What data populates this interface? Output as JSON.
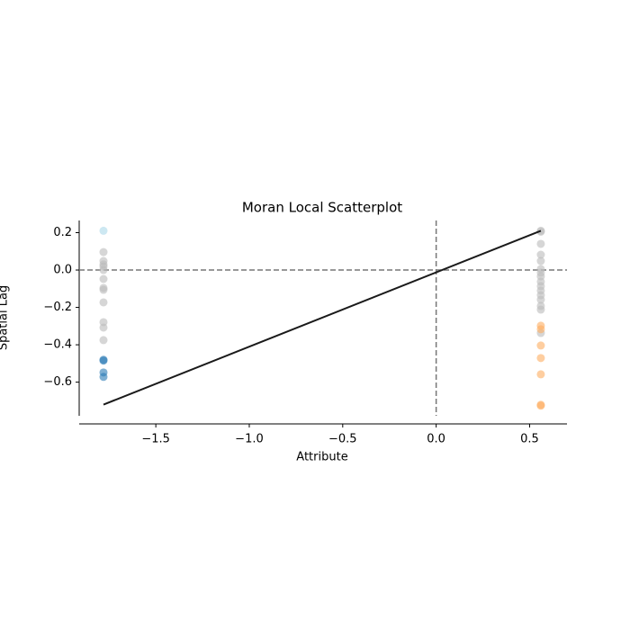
{
  "chart_data": {
    "type": "scatter",
    "title": "Moran Local Scatterplot",
    "x_label": "Attribute",
    "y_label": "Spatial Lag",
    "xlim": [
      -1.91,
      0.7
    ],
    "ylim": [
      -0.78,
      0.265
    ],
    "xticks": [
      {
        "value": -1.5,
        "label": "−1.5"
      },
      {
        "value": -1.0,
        "label": "−1.0"
      },
      {
        "value": -0.5,
        "label": "−0.5"
      },
      {
        "value": 0,
        "label": "0.0"
      },
      0.5
    ],
    "yticks": [
      0.2,
      {
        "value": 0,
        "label": "0.0"
      },
      {
        "value": -0.2,
        "label": "−0.2"
      },
      {
        "value": -0.4,
        "label": "−0.4"
      },
      {
        "value": -0.6,
        "label": "−0.6"
      }
    ],
    "alpha": 0.6,
    "series": [
      {
        "color": "#abd9e9",
        "x": [
          -1.78
        ],
        "values": [
          0.21
        ]
      },
      {
        "color": "#bababa",
        "x": [
          -1.78,
          -1.78,
          -1.78,
          -1.78,
          -1.78,
          -1.78,
          -1.78,
          -1.78,
          -1.78,
          -1.78,
          -1.78,
          -1.78,
          0.56,
          0.56,
          0.56,
          0.56,
          0.56,
          0.56,
          0.56,
          0.56,
          0.56,
          0.56,
          0.56,
          0.56,
          0.56,
          0.56,
          0.56,
          0.56
        ],
        "values": [
          0.096,
          0.048,
          0.019,
          0,
          -0.048,
          -0.096,
          -0.106,
          -0.173,
          -0.279,
          -0.308,
          -0.375,
          0.03,
          0.21,
          0.205,
          0.14,
          0.082,
          0.048,
          0.005,
          -0.014,
          -0.034,
          -0.062,
          -0.086,
          -0.11,
          -0.135,
          -0.159,
          -0.192,
          -0.212,
          -0.337
        ]
      },
      {
        "color": "#2c7bb6",
        "x": [
          -1.78,
          -1.78,
          -1.78,
          -1.78
        ],
        "values": [
          -0.48,
          -0.485,
          -0.548,
          -0.572
        ]
      },
      {
        "color": "#fdae61",
        "x": [
          0.56,
          0.56,
          0.56,
          0.56,
          0.56,
          0.56,
          0.56
        ],
        "values": [
          -0.298,
          -0.317,
          -0.404,
          -0.471,
          -0.558,
          -0.721,
          -0.726
        ]
      }
    ],
    "fit_line": {
      "color": "#1a1a1a",
      "x": [
        -1.78,
        0.56
      ],
      "values": [
        -0.72,
        0.21
      ]
    },
    "hlines": [
      0
    ],
    "vlines": [
      0
    ]
  }
}
